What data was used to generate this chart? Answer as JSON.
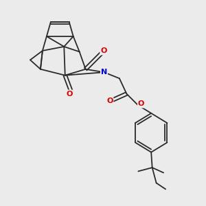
{
  "background_color": "#ebebeb",
  "bond_color": "#2a2a2a",
  "nitrogen_color": "#0000ee",
  "oxygen_color": "#dd0000",
  "line_width": 1.3,
  "figsize": [
    3.0,
    3.0
  ],
  "dpi": 100,
  "atoms": {
    "N": "#0000ee",
    "O": "#dd0000"
  }
}
